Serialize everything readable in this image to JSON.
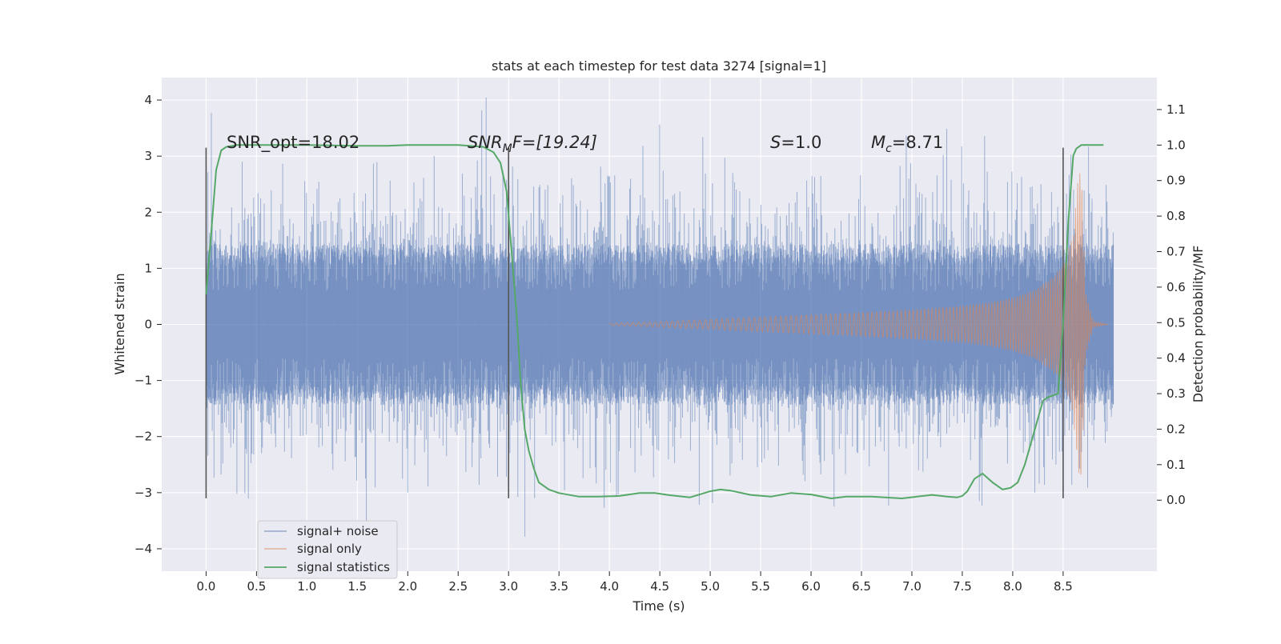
{
  "chart_data": {
    "type": "line",
    "title": "stats at each timestep for test data 3274 [signal=1]",
    "xlabel": "Time (s)",
    "ylabel_left": "Whitened strain",
    "ylabel_right": "Detection probability/MF",
    "xlim": [
      -0.44,
      9.43
    ],
    "ylim_left": [
      -4.4,
      4.4
    ],
    "ylim_right": [
      -0.2,
      1.19
    ],
    "x_ticks": [
      "0.0",
      "0.5",
      "1.0",
      "1.5",
      "2.0",
      "2.5",
      "3.0",
      "3.5",
      "4.0",
      "4.5",
      "5.0",
      "5.5",
      "6.0",
      "6.5",
      "7.0",
      "7.5",
      "8.0",
      "8.5"
    ],
    "y_ticks_left": [
      "4",
      "3",
      "2",
      "1",
      "0",
      "−1",
      "−2",
      "−3",
      "−4"
    ],
    "y_ticks_right": [
      "1.1",
      "1.0",
      "0.9",
      "0.8",
      "0.7",
      "0.6",
      "0.5",
      "0.4",
      "0.3",
      "0.2",
      "0.1",
      "0.0"
    ],
    "legend": {
      "location": "lower-left",
      "entries": [
        "signal+ noise",
        "signal only",
        "signal statistics"
      ]
    },
    "annotations": {
      "snr_opt": "SNR_opt=18.02",
      "snr_mf_main": "SNR",
      "snr_mf_sub": "M",
      "snr_mf_rest": "F=[19.24]",
      "s_main": "S",
      "s_rest": "=1.0",
      "mc_main": "M",
      "mc_sub": "c",
      "mc_rest": "=8.71"
    },
    "colors": {
      "noise": "#4c72b0",
      "signal": "#dd8452",
      "statistics": "#55a868",
      "vline": "#555555",
      "plot_bg": "#eaeaf2",
      "grid": "#ffffff"
    },
    "vlines_x": [
      0.0,
      3.0,
      8.5
    ],
    "vline_range": [
      -3.1,
      3.15
    ],
    "series": [
      {
        "name": "signal statistics",
        "axis": "right",
        "x": [
          0.0,
          0.05,
          0.1,
          0.15,
          0.2,
          0.3,
          0.5,
          1.0,
          1.5,
          1.8,
          2.0,
          2.5,
          2.75,
          2.85,
          2.92,
          2.98,
          3.03,
          3.08,
          3.12,
          3.16,
          3.2,
          3.25,
          3.3,
          3.4,
          3.5,
          3.7,
          3.9,
          4.1,
          4.3,
          4.45,
          4.6,
          4.8,
          5.0,
          5.1,
          5.2,
          5.4,
          5.6,
          5.8,
          6.0,
          6.2,
          6.35,
          6.6,
          6.9,
          7.05,
          7.2,
          7.35,
          7.45,
          7.5,
          7.55,
          7.62,
          7.7,
          7.8,
          7.9,
          7.98,
          8.05,
          8.12,
          8.2,
          8.3,
          8.35,
          8.45,
          8.5,
          8.55,
          8.6,
          8.63,
          8.68,
          8.75,
          8.8,
          8.9
        ],
        "values": [
          0.58,
          0.75,
          0.93,
          0.985,
          0.995,
          1.0,
          1.0,
          1.0,
          0.998,
          0.998,
          1.0,
          1.0,
          0.995,
          0.98,
          0.95,
          0.87,
          0.7,
          0.52,
          0.33,
          0.2,
          0.14,
          0.09,
          0.05,
          0.03,
          0.02,
          0.01,
          0.01,
          0.012,
          0.02,
          0.02,
          0.014,
          0.008,
          0.025,
          0.03,
          0.027,
          0.015,
          0.01,
          0.02,
          0.016,
          0.005,
          0.01,
          0.01,
          0.005,
          0.01,
          0.015,
          0.01,
          0.008,
          0.012,
          0.025,
          0.06,
          0.075,
          0.05,
          0.03,
          0.035,
          0.05,
          0.1,
          0.18,
          0.28,
          0.29,
          0.3,
          0.5,
          0.78,
          0.97,
          0.99,
          1.0,
          1.0,
          1.0,
          1.0
        ]
      },
      {
        "name": "signal only",
        "axis": "left",
        "x": [
          4.0,
          4.5,
          5.0,
          5.5,
          6.0,
          6.5,
          7.0,
          7.5,
          7.8,
          8.0,
          8.2,
          8.4,
          8.5,
          8.6,
          8.64,
          8.68,
          8.72,
          8.8,
          8.95
        ],
        "envelope": [
          0.02,
          0.05,
          0.09,
          0.13,
          0.17,
          0.21,
          0.26,
          0.33,
          0.4,
          0.48,
          0.6,
          0.85,
          1.05,
          1.6,
          2.5,
          2.9,
          0.6,
          0.05,
          0.0
        ]
      },
      {
        "name": "signal+ noise",
        "axis": "left",
        "x_range": [
          0.0,
          9.0
        ],
        "core_amplitude": 1.25,
        "typical_peak": 2.3,
        "max_peak": 4.05,
        "min_trough": -3.9
      }
    ]
  }
}
